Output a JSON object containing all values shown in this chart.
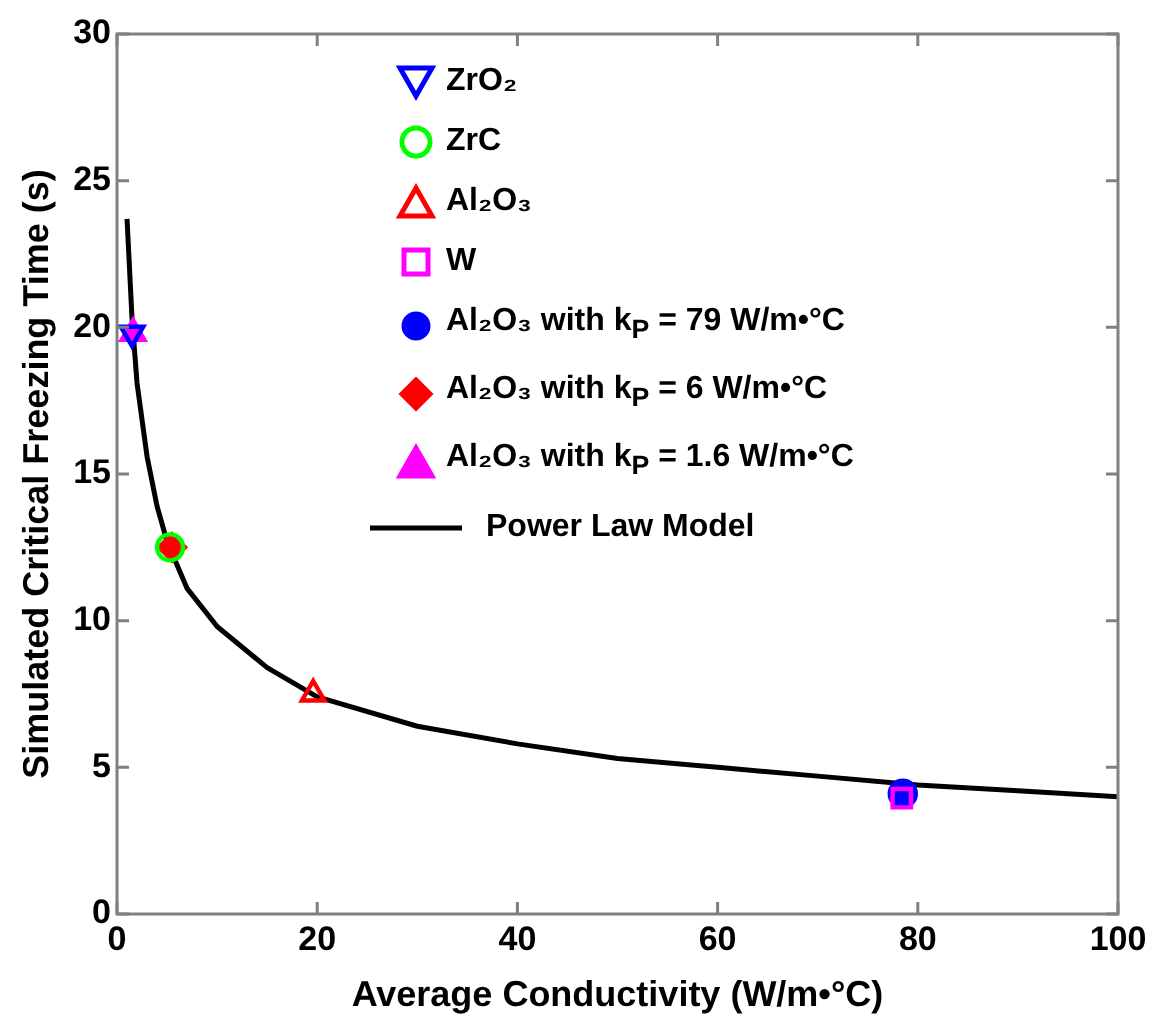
{
  "chart_data": {
    "type": "scatter",
    "xlabel": "Average Conductivity (W/m•°C)",
    "ylabel": "Simulated Critical Freezing Time (s)",
    "xlim": [
      0,
      100
    ],
    "xticks": [
      0,
      20,
      40,
      60,
      80,
      100
    ],
    "ylim": [
      0,
      30
    ],
    "yticks": [
      0,
      5,
      10,
      15,
      20,
      25,
      30
    ],
    "grid": false,
    "legend": "top left",
    "series": [
      {
        "name": "ZrO₂",
        "color": "#0000ff",
        "marker": "triangle_down",
        "x": [
          1.5
        ],
        "values": [
          19.8
        ]
      },
      {
        "name": "ZrC",
        "color": "#00ff00",
        "marker": "circle",
        "x": [
          5.3
        ],
        "values": [
          12.5
        ]
      },
      {
        "name": "Al₂O₃",
        "color": "#ff0000",
        "marker": "triangle",
        "x": [
          19.6
        ],
        "values": [
          7.5
        ]
      },
      {
        "name": "W",
        "color": "#ff00ff",
        "marker": "square",
        "x": [
          78.4
        ],
        "values": [
          3.95
        ]
      },
      {
        "name": "Al₂O₃ with k$_{P}$ = 79 W/m•°C",
        "color": "#0000ff",
        "marker": "circle-filled",
        "x": [
          78.5
        ],
        "values": [
          4.1
        ]
      },
      {
        "name": "Al₂O₃ with k$_{P}$ = 6 W/m•°C",
        "color": "#ff0000",
        "marker": "diamond-filled",
        "x": [
          5.5
        ],
        "values": [
          12.5
        ]
      },
      {
        "name": "Al₂O₃ with k$_{P}$ = 1.6 W/m•°C",
        "color": "#ff00ff",
        "marker": "triangle-filled",
        "x": [
          1.6
        ],
        "values": [
          19.8
        ]
      },
      {
        "name": "Power Law Model",
        "type": "line",
        "color": "#000000",
        "marker": "none",
        "line_style": "solid",
        "x": [
          1,
          1.5,
          2,
          3,
          4,
          5,
          7,
          10,
          15,
          20,
          30,
          40,
          50,
          60,
          70,
          80,
          90,
          100
        ],
        "values": [
          23.7,
          20.3,
          18.1,
          15.6,
          13.9,
          12.7,
          11.1,
          9.8,
          8.4,
          7.4,
          6.4,
          5.8,
          5.3,
          5.0,
          4.7,
          4.4,
          4.2,
          4.0
        ]
      }
    ]
  }
}
